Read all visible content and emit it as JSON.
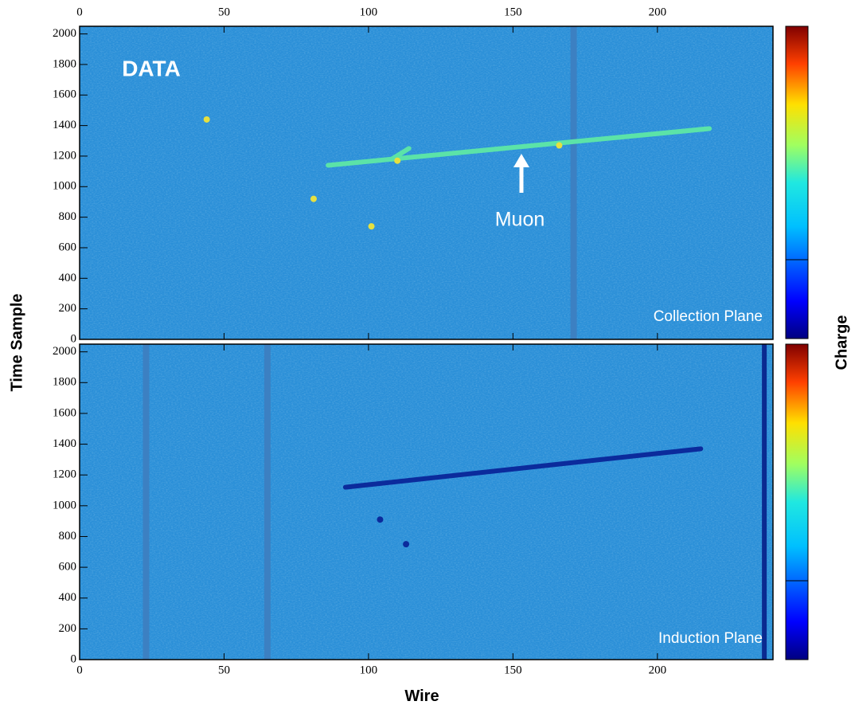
{
  "chart_data": [
    {
      "type": "heatmap",
      "label": "DATA",
      "plane_label": "Collection Plane",
      "arrow_text": "Muon",
      "y_label": "Time Sample",
      "colorbar_label": "Charge",
      "xlim": [
        0,
        240
      ],
      "ylim": [
        0,
        2050
      ],
      "xticks": [
        0,
        50,
        100,
        150,
        200
      ],
      "yticks": [
        0,
        200,
        400,
        600,
        800,
        1000,
        1200,
        1400,
        1600,
        1800,
        2000
      ],
      "background_color": "#2a8fd8",
      "dead_wire_color": "#3c80c2",
      "track_color": "#5be3a8",
      "spot_color": "#e6e040",
      "tracks": [
        {
          "x": [
            86,
            218
          ],
          "y": [
            1140,
            1380
          ]
        },
        {
          "x": [
            108,
            114
          ],
          "y": [
            1180,
            1250
          ]
        }
      ],
      "spots": {
        "x": [
          44,
          81,
          101,
          166,
          110
        ],
        "y": [
          1440,
          920,
          740,
          1270,
          1170
        ]
      },
      "dead_wires": [
        171
      ]
    },
    {
      "type": "heatmap",
      "plane_label": "Induction Plane",
      "x_label": "Wire",
      "xlim": [
        0,
        240
      ],
      "ylim": [
        0,
        2050
      ],
      "xticks": [
        0,
        50,
        100,
        150,
        200
      ],
      "yticks": [
        0,
        200,
        400,
        600,
        800,
        1000,
        1200,
        1400,
        1600,
        1800,
        2000
      ],
      "background_color": "#2a8fd8",
      "dead_wire_color": "#3c80c2",
      "track_color": "#0b2b9c",
      "spot_color": "#0b2b9c",
      "tracks": [
        {
          "x": [
            92,
            215
          ],
          "y": [
            1120,
            1370
          ]
        }
      ],
      "spots": {
        "x": [
          104,
          113
        ],
        "y": [
          910,
          750
        ]
      },
      "dead_wires": [
        23,
        65
      ],
      "bad_wires": [
        237
      ],
      "bad_wire_color": "#0a2a90"
    }
  ]
}
